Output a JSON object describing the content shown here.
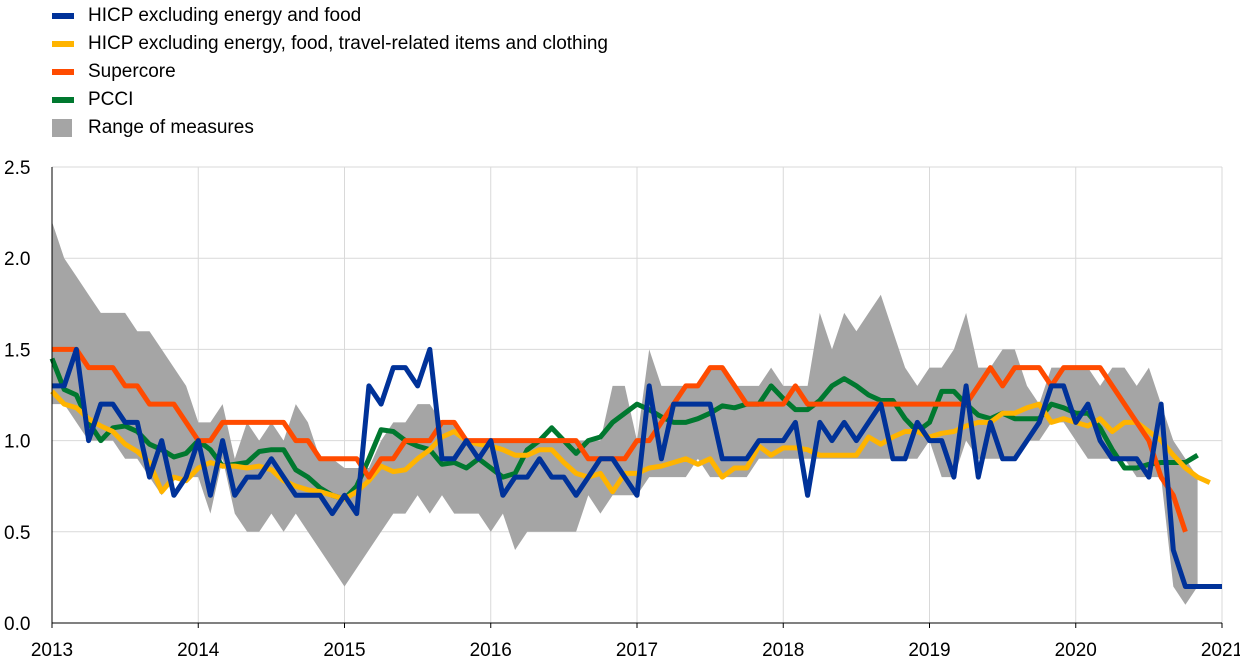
{
  "chart_data": {
    "type": "line",
    "title": "",
    "xlabel": "",
    "ylabel": "",
    "x_start": "2013-01",
    "x_ticks": [
      "2013",
      "2014",
      "2015",
      "2016",
      "2017",
      "2018",
      "2019",
      "2020",
      "2021"
    ],
    "ylim": [
      0,
      2.5
    ],
    "y_ticks": [
      "0.0",
      "0.5",
      "1.0",
      "1.5",
      "2.0",
      "2.5"
    ],
    "grid": "vertical and horizontal, light gray",
    "legend_position": "top-left",
    "series": [
      {
        "name": "HICP excluding energy and food",
        "color": "#003299",
        "values": [
          1.3,
          1.3,
          1.5,
          1.0,
          1.2,
          1.2,
          1.1,
          1.1,
          0.8,
          1.0,
          0.7,
          0.8,
          1.0,
          0.7,
          1.0,
          0.7,
          0.8,
          0.8,
          0.9,
          0.8,
          0.7,
          0.7,
          0.7,
          0.6,
          0.7,
          0.6,
          1.3,
          1.2,
          1.4,
          1.4,
          1.3,
          1.5,
          0.9,
          0.9,
          1.0,
          0.9,
          1.0,
          0.7,
          0.8,
          0.8,
          0.9,
          0.8,
          0.8,
          0.7,
          0.8,
          0.9,
          0.9,
          0.8,
          0.7,
          1.3,
          0.9,
          1.2,
          1.2,
          1.2,
          1.2,
          0.9,
          0.9,
          0.9,
          1.0,
          1.0,
          1.0,
          1.1,
          0.7,
          1.1,
          1.0,
          1.1,
          1.0,
          1.1,
          1.2,
          0.9,
          0.9,
          1.1,
          1.0,
          1.0,
          0.8,
          1.3,
          0.8,
          1.1,
          0.9,
          0.9,
          1.0,
          1.1,
          1.3,
          1.3,
          1.1,
          1.2,
          1.0,
          0.9,
          0.9,
          0.9,
          0.8,
          1.2,
          0.4,
          0.2,
          0.2,
          0.2,
          0.2
        ]
      },
      {
        "name": "HICP excluding energy, food, travel-related items and clothing",
        "color": "#FFB400",
        "values": [
          1.27,
          1.2,
          1.18,
          1.12,
          1.08,
          1.05,
          0.98,
          0.94,
          0.88,
          0.72,
          0.8,
          0.78,
          0.85,
          0.88,
          0.86,
          0.86,
          0.85,
          0.86,
          0.84,
          0.78,
          0.75,
          0.73,
          0.72,
          0.7,
          0.68,
          0.72,
          0.78,
          0.86,
          0.83,
          0.84,
          0.9,
          0.95,
          1.02,
          1.05,
          1.0,
          0.98,
          0.97,
          0.95,
          0.92,
          0.92,
          0.95,
          0.95,
          0.88,
          0.82,
          0.8,
          0.82,
          0.72,
          0.82,
          0.82,
          0.85,
          0.86,
          0.88,
          0.9,
          0.87,
          0.9,
          0.8,
          0.85,
          0.85,
          0.97,
          0.92,
          0.96,
          0.96,
          0.95,
          0.92,
          0.92,
          0.92,
          0.92,
          1.02,
          0.98,
          1.02,
          1.05,
          1.05,
          1.02,
          1.04,
          1.05,
          1.08,
          1.1,
          1.1,
          1.15,
          1.15,
          1.18,
          1.2,
          1.1,
          1.12,
          1.1,
          1.08,
          1.12,
          1.05,
          1.1,
          1.1,
          1.05,
          1.0,
          0.92,
          0.85,
          0.8,
          0.77
        ]
      },
      {
        "name": "Supercore",
        "color": "#FF4B00",
        "values": [
          1.5,
          1.5,
          1.5,
          1.4,
          1.4,
          1.4,
          1.3,
          1.3,
          1.2,
          1.2,
          1.2,
          1.1,
          1.0,
          1.0,
          1.1,
          1.1,
          1.1,
          1.1,
          1.1,
          1.1,
          1.0,
          1.0,
          0.9,
          0.9,
          0.9,
          0.9,
          0.8,
          0.9,
          0.9,
          1.0,
          1.0,
          1.0,
          1.1,
          1.1,
          1.0,
          1.0,
          1.0,
          1.0,
          1.0,
          1.0,
          1.0,
          1.0,
          1.0,
          1.0,
          0.9,
          0.9,
          0.9,
          0.9,
          1.0,
          1.0,
          1.1,
          1.2,
          1.3,
          1.3,
          1.4,
          1.4,
          1.3,
          1.2,
          1.2,
          1.2,
          1.2,
          1.3,
          1.2,
          1.2,
          1.2,
          1.2,
          1.2,
          1.2,
          1.2,
          1.2,
          1.2,
          1.2,
          1.2,
          1.2,
          1.2,
          1.2,
          1.3,
          1.4,
          1.3,
          1.4,
          1.4,
          1.4,
          1.3,
          1.4,
          1.4,
          1.4,
          1.4,
          1.3,
          1.2,
          1.1,
          1.0,
          0.8,
          0.7,
          0.5
        ]
      },
      {
        "name": "PCCI",
        "color": "#00782F",
        "values": [
          1.45,
          1.28,
          1.25,
          1.1,
          1.0,
          1.07,
          1.08,
          1.05,
          0.98,
          0.95,
          0.91,
          0.93,
          1.0,
          0.95,
          0.86,
          0.87,
          0.88,
          0.94,
          0.95,
          0.95,
          0.84,
          0.8,
          0.74,
          0.7,
          0.68,
          0.75,
          0.9,
          1.06,
          1.05,
          1.0,
          0.97,
          0.95,
          0.87,
          0.88,
          0.85,
          0.9,
          0.85,
          0.8,
          0.82,
          0.95,
          1.0,
          1.07,
          1.0,
          0.93,
          1.0,
          1.02,
          1.1,
          1.15,
          1.2,
          1.17,
          1.13,
          1.1,
          1.1,
          1.12,
          1.15,
          1.19,
          1.18,
          1.2,
          1.2,
          1.3,
          1.23,
          1.17,
          1.17,
          1.22,
          1.3,
          1.34,
          1.3,
          1.25,
          1.22,
          1.22,
          1.12,
          1.05,
          1.1,
          1.27,
          1.27,
          1.2,
          1.14,
          1.12,
          1.15,
          1.12,
          1.12,
          1.12,
          1.2,
          1.18,
          1.15,
          1.15,
          1.07,
          0.95,
          0.85,
          0.85,
          0.87,
          0.88,
          0.88,
          0.88,
          0.92
        ]
      }
    ],
    "range": {
      "name": "Range of measures",
      "color": "#A5A5A5",
      "upper": [
        2.2,
        2.0,
        1.9,
        1.8,
        1.7,
        1.7,
        1.7,
        1.6,
        1.6,
        1.5,
        1.4,
        1.3,
        1.1,
        1.1,
        1.2,
        0.9,
        1.1,
        1.0,
        1.1,
        1.0,
        1.2,
        1.1,
        0.9,
        0.9,
        0.85,
        0.85,
        0.85,
        1.0,
        1.1,
        1.1,
        1.2,
        1.2,
        1.1,
        1.1,
        1.0,
        1.0,
        1.0,
        1.0,
        1.0,
        1.0,
        1.0,
        1.0,
        1.0,
        1.0,
        1.0,
        1.0,
        1.3,
        1.3,
        1.0,
        1.5,
        1.3,
        1.3,
        1.3,
        1.3,
        1.4,
        1.4,
        1.3,
        1.3,
        1.3,
        1.4,
        1.3,
        1.3,
        1.3,
        1.7,
        1.5,
        1.7,
        1.6,
        1.7,
        1.8,
        1.6,
        1.4,
        1.3,
        1.4,
        1.4,
        1.5,
        1.7,
        1.4,
        1.4,
        1.5,
        1.5,
        1.3,
        1.2,
        1.4,
        1.4,
        1.4,
        1.4,
        1.3,
        1.4,
        1.4,
        1.3,
        1.4,
        1.2,
        1.0,
        0.9,
        0.8
      ],
      "lower": [
        1.2,
        1.2,
        1.1,
        1.0,
        1.0,
        1.0,
        0.9,
        0.9,
        0.8,
        0.7,
        0.8,
        0.8,
        0.8,
        0.6,
        0.9,
        0.6,
        0.5,
        0.5,
        0.6,
        0.5,
        0.6,
        0.5,
        0.4,
        0.3,
        0.2,
        0.3,
        0.4,
        0.5,
        0.6,
        0.6,
        0.7,
        0.6,
        0.7,
        0.6,
        0.6,
        0.6,
        0.5,
        0.6,
        0.4,
        0.5,
        0.5,
        0.5,
        0.5,
        0.5,
        0.7,
        0.6,
        0.7,
        0.7,
        0.7,
        0.8,
        0.8,
        0.8,
        0.8,
        0.9,
        0.8,
        0.8,
        0.8,
        0.8,
        0.9,
        0.9,
        0.9,
        0.9,
        0.9,
        0.9,
        0.9,
        0.9,
        0.9,
        0.9,
        0.9,
        0.9,
        0.9,
        0.9,
        1.0,
        0.8,
        0.8,
        1.0,
        0.9,
        0.9,
        0.9,
        0.9,
        1.0,
        1.0,
        1.1,
        1.1,
        1.0,
        0.9,
        0.9,
        0.9,
        0.9,
        0.8,
        0.8,
        0.8,
        0.2,
        0.1,
        0.2
      ]
    }
  }
}
